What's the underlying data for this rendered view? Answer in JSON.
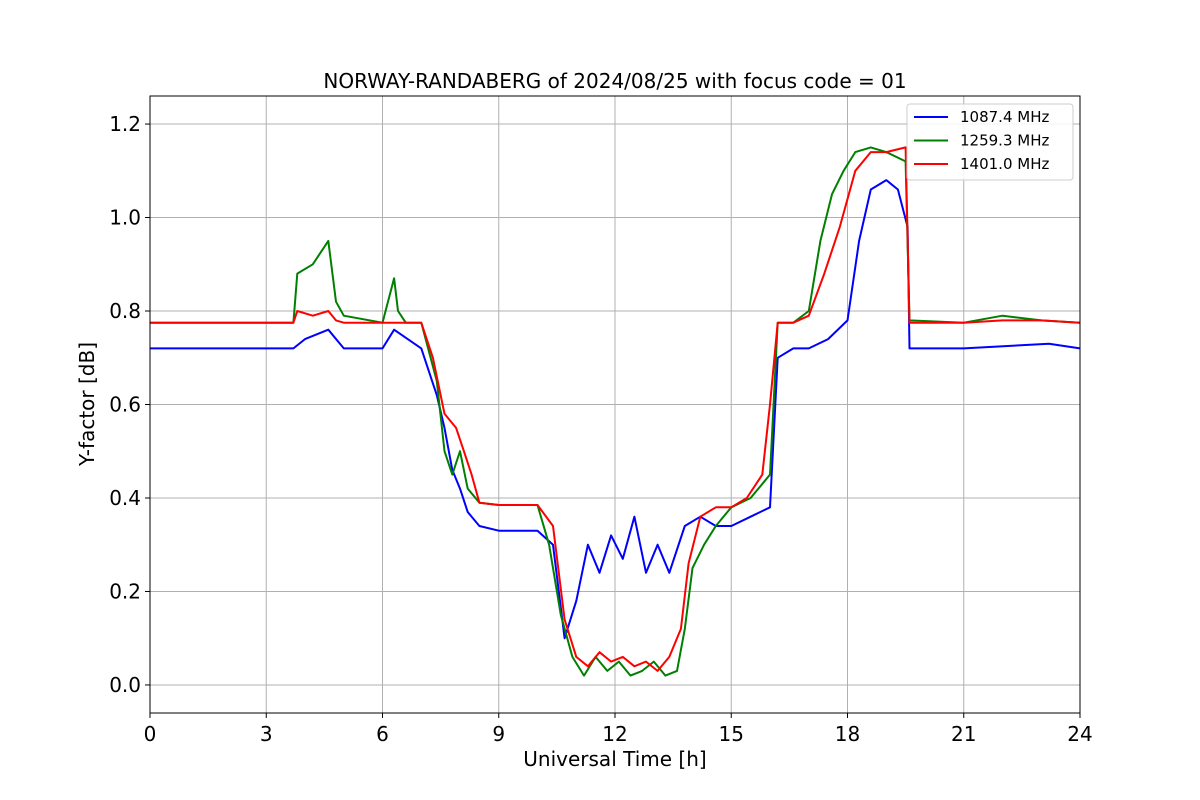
{
  "chart_data": {
    "type": "line",
    "title": "NORWAY-RANDABERG of 2024/08/25 with focus code = 01",
    "xlabel": "Universal Time [h]",
    "ylabel": "Y-factor [dB]",
    "xlim": [
      0,
      24
    ],
    "ylim": [
      -0.06,
      1.26
    ],
    "xticks": [
      0,
      3,
      6,
      9,
      12,
      15,
      18,
      21,
      24
    ],
    "xtick_labels": [
      "0",
      "3",
      "6",
      "9",
      "12",
      "15",
      "18",
      "21",
      "24"
    ],
    "yticks": [
      0.0,
      0.2,
      0.4,
      0.6,
      0.8,
      1.0,
      1.2
    ],
    "ytick_labels": [
      "0.0",
      "0.2",
      "0.4",
      "0.6",
      "0.8",
      "1.0",
      "1.2"
    ],
    "grid": true,
    "legend_position": "top-right",
    "series": [
      {
        "name": "1087.4 MHz",
        "color": "#0000ff",
        "x": [
          0,
          3.7,
          4.0,
          4.6,
          5.0,
          6.0,
          6.3,
          7.0,
          7.4,
          7.6,
          7.8,
          8.0,
          8.2,
          8.5,
          9.0,
          10.0,
          10.4,
          10.7,
          11.0,
          11.3,
          11.6,
          11.9,
          12.2,
          12.5,
          12.8,
          13.1,
          13.4,
          13.8,
          14.2,
          14.6,
          15.0,
          15.5,
          16.0,
          16.2,
          16.6,
          17.0,
          17.5,
          18.0,
          18.3,
          18.6,
          19.0,
          19.3,
          19.55,
          19.6,
          21.0,
          23.2,
          24.0
        ],
        "y": [
          0.72,
          0.72,
          0.74,
          0.76,
          0.72,
          0.72,
          0.76,
          0.72,
          0.62,
          0.55,
          0.46,
          0.42,
          0.37,
          0.34,
          0.33,
          0.33,
          0.3,
          0.1,
          0.18,
          0.3,
          0.24,
          0.32,
          0.27,
          0.36,
          0.24,
          0.3,
          0.24,
          0.34,
          0.36,
          0.34,
          0.34,
          0.36,
          0.38,
          0.7,
          0.72,
          0.72,
          0.74,
          0.78,
          0.95,
          1.06,
          1.08,
          1.06,
          0.98,
          0.72,
          0.72,
          0.73,
          0.72
        ]
      },
      {
        "name": "1259.3 MHz",
        "color": "#008000",
        "x": [
          0,
          3.7,
          3.8,
          4.2,
          4.6,
          4.8,
          5.0,
          6.0,
          6.3,
          6.4,
          6.6,
          7.0,
          7.4,
          7.6,
          7.8,
          8.0,
          8.2,
          8.5,
          9.0,
          10.0,
          10.3,
          10.6,
          10.9,
          11.2,
          11.5,
          11.8,
          12.1,
          12.4,
          12.7,
          13.0,
          13.3,
          13.6,
          13.8,
          14.0,
          14.3,
          14.6,
          15.0,
          15.5,
          16.0,
          16.2,
          16.6,
          17.0,
          17.3,
          17.6,
          17.9,
          18.2,
          18.6,
          19.0,
          19.5,
          19.6,
          21.0,
          22.0,
          23.0,
          24.0
        ],
        "y": [
          0.775,
          0.775,
          0.88,
          0.9,
          0.95,
          0.82,
          0.79,
          0.775,
          0.87,
          0.8,
          0.775,
          0.775,
          0.65,
          0.5,
          0.45,
          0.5,
          0.42,
          0.39,
          0.385,
          0.385,
          0.3,
          0.15,
          0.06,
          0.02,
          0.06,
          0.03,
          0.05,
          0.02,
          0.03,
          0.05,
          0.02,
          0.03,
          0.12,
          0.25,
          0.3,
          0.34,
          0.38,
          0.4,
          0.45,
          0.775,
          0.775,
          0.8,
          0.95,
          1.05,
          1.1,
          1.14,
          1.15,
          1.14,
          1.12,
          0.78,
          0.775,
          0.79,
          0.78,
          0.775
        ]
      },
      {
        "name": "1401.0 MHz",
        "color": "#ff0000",
        "x": [
          0,
          3.7,
          3.8,
          4.2,
          4.6,
          4.8,
          5.0,
          6.0,
          7.0,
          7.3,
          7.6,
          7.9,
          8.1,
          8.3,
          8.5,
          9.0,
          10.0,
          10.4,
          10.7,
          11.0,
          11.3,
          11.6,
          11.9,
          12.2,
          12.5,
          12.8,
          13.1,
          13.4,
          13.7,
          13.9,
          14.2,
          14.6,
          15.0,
          15.4,
          15.8,
          16.0,
          16.2,
          16.6,
          17.0,
          17.4,
          17.8,
          18.2,
          18.6,
          19.0,
          19.5,
          19.6,
          21.0,
          22.0,
          23.0,
          24.0
        ],
        "y": [
          0.775,
          0.775,
          0.8,
          0.79,
          0.8,
          0.78,
          0.775,
          0.775,
          0.775,
          0.7,
          0.58,
          0.55,
          0.5,
          0.45,
          0.39,
          0.385,
          0.385,
          0.34,
          0.14,
          0.06,
          0.04,
          0.07,
          0.05,
          0.06,
          0.04,
          0.05,
          0.03,
          0.06,
          0.12,
          0.26,
          0.36,
          0.38,
          0.38,
          0.4,
          0.45,
          0.6,
          0.775,
          0.775,
          0.79,
          0.88,
          0.98,
          1.1,
          1.14,
          1.14,
          1.15,
          0.775,
          0.775,
          0.78,
          0.78,
          0.775
        ]
      }
    ]
  }
}
